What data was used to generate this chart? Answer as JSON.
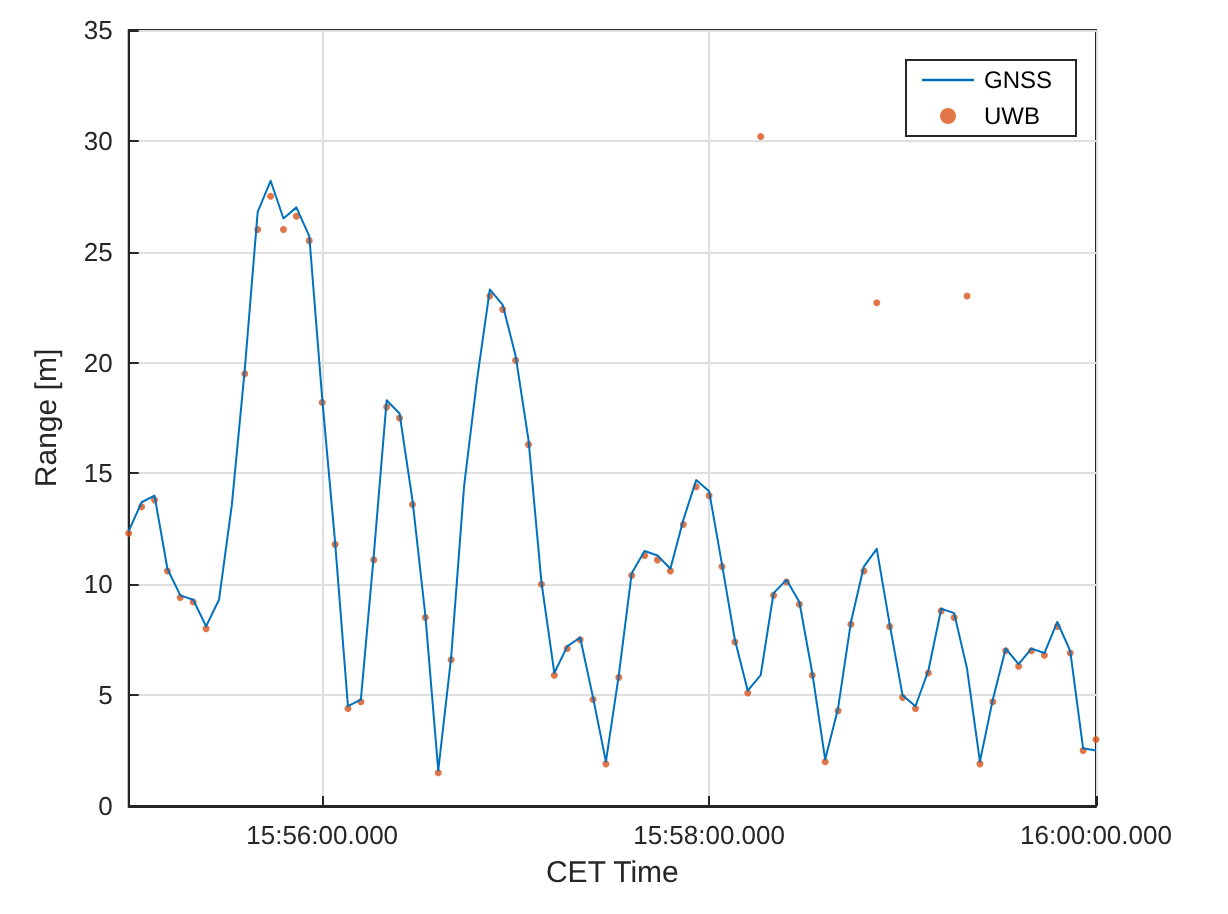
{
  "chart_data": {
    "type": "line",
    "xlabel": "CET Time",
    "ylabel": "Range [m]",
    "categories": [
      null,
      null,
      null,
      null,
      null,
      null,
      null,
      null,
      null,
      null,
      null,
      null,
      null,
      null,
      null,
      "15:56:00.000",
      null,
      null,
      null,
      null,
      null,
      null,
      null,
      null,
      null,
      null,
      null,
      null,
      null,
      null,
      null,
      null,
      null,
      null,
      null,
      null,
      null,
      null,
      null,
      null,
      null,
      null,
      null,
      null,
      null,
      "15:58:00.000",
      null,
      null,
      null,
      null,
      null,
      null,
      null,
      null,
      null,
      null,
      null,
      null,
      null,
      null,
      null,
      null,
      null,
      null,
      null,
      null,
      null,
      null,
      null,
      null,
      null,
      null,
      null,
      null,
      null,
      "16:00:00.000"
    ],
    "ylim": [
      0,
      35
    ],
    "yticks": [
      0,
      5,
      10,
      15,
      20,
      25,
      30,
      35
    ],
    "grid": true,
    "legend": "top right",
    "series": [
      {
        "name": "GNSS",
        "type": "line",
        "marker": "none",
        "color": "#0072bd",
        "values": [
          12.4,
          13.7,
          14.0,
          10.7,
          9.5,
          9.3,
          8.1,
          9.3,
          13.6,
          19.7,
          26.8,
          28.2,
          26.5,
          27.0,
          25.7,
          18.4,
          11.9,
          4.5,
          4.8,
          11.3,
          18.3,
          17.7,
          13.8,
          8.6,
          1.6,
          6.7,
          14.4,
          19.2,
          23.3,
          22.6,
          20.3,
          16.5,
          10.1,
          6.0,
          7.2,
          7.6,
          4.9,
          2.0,
          5.9,
          10.5,
          11.5,
          11.3,
          10.7,
          12.9,
          14.7,
          14.2,
          10.9,
          7.5,
          5.2,
          5.9,
          9.6,
          10.2,
          9.2,
          6.0,
          2.1,
          4.4,
          8.3,
          10.8,
          11.6,
          8.2,
          5.0,
          4.5,
          6.1,
          8.9,
          8.7,
          6.2,
          2.0,
          4.8,
          7.1,
          6.4,
          7.1,
          6.9,
          8.3,
          7.0,
          2.6,
          2.5
        ]
      },
      {
        "name": "UWB",
        "type": "scatter",
        "marker": "circle",
        "color": "#d95319",
        "values": [
          12.3,
          13.5,
          13.8,
          10.6,
          9.4,
          9.2,
          8.0,
          null,
          null,
          19.5,
          26.0,
          27.5,
          26.0,
          26.6,
          25.5,
          18.2,
          11.8,
          4.4,
          4.7,
          11.1,
          18.0,
          17.5,
          13.6,
          8.5,
          1.5,
          6.6,
          null,
          null,
          23.0,
          22.4,
          20.1,
          16.3,
          10.0,
          5.9,
          7.1,
          7.5,
          4.8,
          1.9,
          5.8,
          10.4,
          11.3,
          11.1,
          10.6,
          12.7,
          14.4,
          14.0,
          10.8,
          7.4,
          5.1,
          30.2,
          9.5,
          10.1,
          9.1,
          5.9,
          2.0,
          4.3,
          8.2,
          10.6,
          22.7,
          8.1,
          4.9,
          4.4,
          6.0,
          8.8,
          8.5,
          23.0,
          1.9,
          4.7,
          7.0,
          6.3,
          7.0,
          6.8,
          8.1,
          6.9,
          2.5,
          3.0
        ]
      }
    ]
  }
}
